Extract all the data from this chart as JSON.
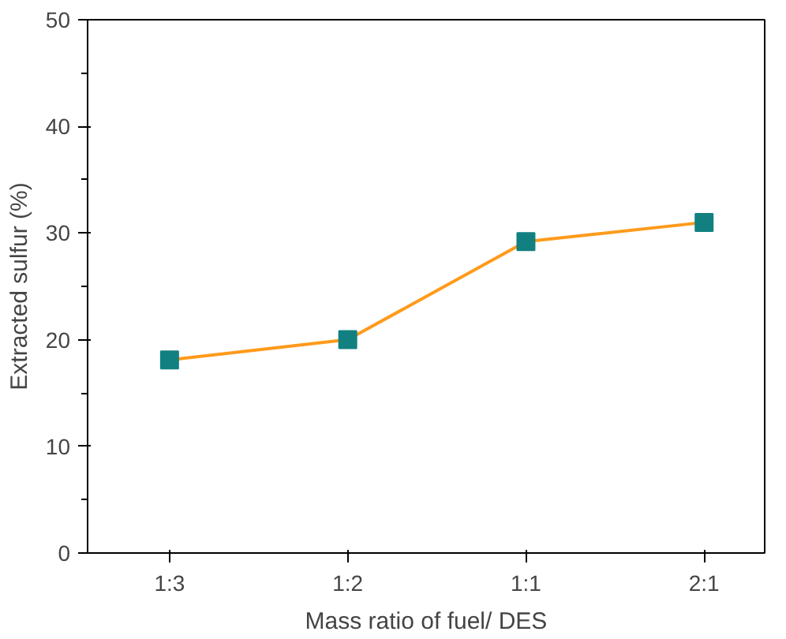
{
  "chart_data": {
    "type": "line",
    "xlabel": "Mass ratio of fuel/ DES",
    "ylabel": "Extracted sulfur (%)",
    "categories": [
      "1:3",
      "1:2",
      "1:1",
      "2:1"
    ],
    "series": [
      {
        "color": "#ff9a1a",
        "colors": [
          "#128080",
          "#128080",
          "#128080",
          "#128080"
        ],
        "values": [
          18.1,
          20.0,
          29.2,
          31.0
        ]
      }
    ],
    "marker": "square",
    "ylim": [
      0,
      50
    ],
    "yticks": [
      0,
      10,
      20,
      30,
      40,
      50
    ],
    "grid": false
  }
}
